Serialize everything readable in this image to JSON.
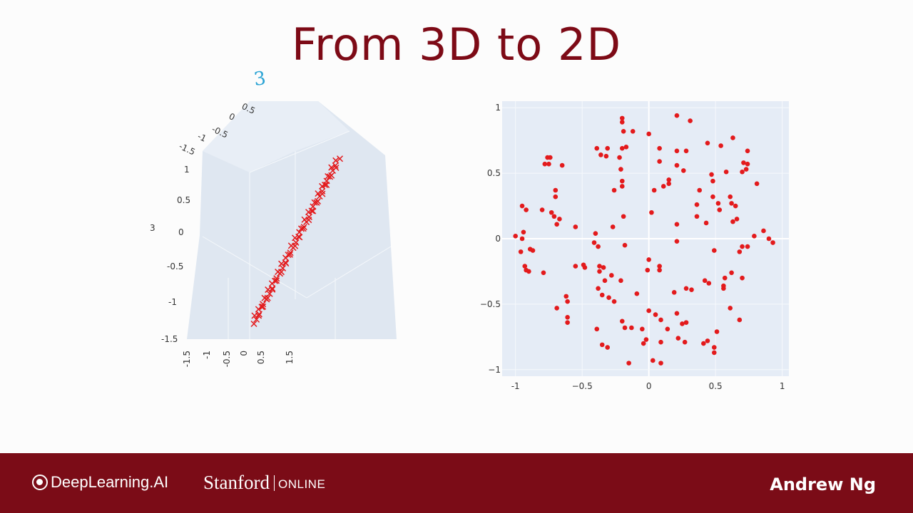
{
  "slide": {
    "title": "From 3D to 2D",
    "annotation": "3"
  },
  "footer": {
    "deeplearning_label": "DeepLearning.AI",
    "stanford_label": "Stanford",
    "online_label": "ONLINE",
    "presenter": "Andrew Ng"
  },
  "colors": {
    "title": "#7d0a16",
    "footer_bg": "#7b0c17",
    "marker": "#e31a1c",
    "plot_bg": "#e5ecf6"
  },
  "chart_data": [
    {
      "type": "scatter3d",
      "marker": "x",
      "x_ticks": [
        "-1.5",
        "-1",
        "-0.5",
        "0",
        "0.5",
        "1.5"
      ],
      "z_ticks": [
        "1",
        "0.5",
        "0",
        "-0.5",
        "-1",
        "-1.5"
      ],
      "top_ticks": [
        "0.5",
        "0",
        "-0.5",
        "-1",
        "-1.5"
      ],
      "side_label": "3",
      "line": {
        "t_from": -1.5,
        "t_to": 1.5,
        "n": 70
      }
    },
    {
      "type": "scatter",
      "xlim": [
        -1.1,
        1.05
      ],
      "ylim": [
        -1.05,
        1.05
      ],
      "x_ticks": [
        "-1",
        "−0.5",
        "0",
        "0.5",
        "1"
      ],
      "x_tick_values": [
        -1,
        -0.5,
        0,
        0.5,
        1
      ],
      "y_ticks": [
        "1",
        "0.5",
        "0",
        "−0.5",
        "−1"
      ],
      "y_tick_values": [
        1,
        0.5,
        0,
        -0.5,
        -1
      ],
      "grid": true,
      "points": [
        [
          -0.2,
          0.92
        ],
        [
          -0.2,
          0.89
        ],
        [
          0.21,
          0.94
        ],
        [
          0.31,
          0.9
        ],
        [
          -0.19,
          0.82
        ],
        [
          -0.12,
          0.82
        ],
        [
          0,
          0.8
        ],
        [
          0.63,
          0.77
        ],
        [
          -0.39,
          0.69
        ],
        [
          -0.31,
          0.69
        ],
        [
          -0.2,
          0.69
        ],
        [
          -0.17,
          0.7
        ],
        [
          0.08,
          0.69
        ],
        [
          0.21,
          0.67
        ],
        [
          0.28,
          0.67
        ],
        [
          0.44,
          0.73
        ],
        [
          0.54,
          0.71
        ],
        [
          0.74,
          0.67
        ],
        [
          -0.36,
          0.64
        ],
        [
          -0.32,
          0.63
        ],
        [
          -0.22,
          0.62
        ],
        [
          0.08,
          0.59
        ],
        [
          -0.76,
          0.62
        ],
        [
          -0.74,
          0.62
        ],
        [
          -0.78,
          0.57
        ],
        [
          -0.75,
          0.57
        ],
        [
          -0.65,
          0.56
        ],
        [
          -0.21,
          0.53
        ],
        [
          0.21,
          0.56
        ],
        [
          0.26,
          0.52
        ],
        [
          0.47,
          0.49
        ],
        [
          0.58,
          0.51
        ],
        [
          0.71,
          0.58
        ],
        [
          0.74,
          0.57
        ],
        [
          0.7,
          0.51
        ],
        [
          0.73,
          0.53
        ],
        [
          0.81,
          0.42
        ],
        [
          -0.2,
          0.44
        ],
        [
          -0.2,
          0.4
        ],
        [
          -0.26,
          0.37
        ],
        [
          0.15,
          0.45
        ],
        [
          0.15,
          0.42
        ],
        [
          0.11,
          0.4
        ],
        [
          0.04,
          0.37
        ],
        [
          0.48,
          0.44
        ],
        [
          0.38,
          0.37
        ],
        [
          0.48,
          0.32
        ],
        [
          0.52,
          0.27
        ],
        [
          0.61,
          0.32
        ],
        [
          0.62,
          0.27
        ],
        [
          0.65,
          0.25
        ],
        [
          -0.7,
          0.37
        ],
        [
          -0.7,
          0.32
        ],
        [
          -0.95,
          0.25
        ],
        [
          -0.92,
          0.22
        ],
        [
          -0.8,
          0.22
        ],
        [
          -0.73,
          0.2
        ],
        [
          -0.71,
          0.17
        ],
        [
          -0.67,
          0.15
        ],
        [
          -0.69,
          0.11
        ],
        [
          -0.19,
          0.17
        ],
        [
          0.02,
          0.2
        ],
        [
          0.36,
          0.26
        ],
        [
          0.36,
          0.17
        ],
        [
          0.21,
          0.11
        ],
        [
          0.43,
          0.12
        ],
        [
          0.53,
          0.22
        ],
        [
          0.66,
          0.15
        ],
        [
          0.63,
          0.13
        ],
        [
          -0.55,
          0.09
        ],
        [
          -0.27,
          0.09
        ],
        [
          -1,
          0.02
        ],
        [
          -0.94,
          0.05
        ],
        [
          -0.95,
          0
        ],
        [
          0.86,
          0.06
        ],
        [
          0.79,
          0.02
        ],
        [
          0.9,
          0
        ],
        [
          0.93,
          -0.03
        ],
        [
          -0.4,
          0.04
        ],
        [
          -0.41,
          -0.03
        ],
        [
          -0.38,
          -0.06
        ],
        [
          -0.18,
          -0.05
        ],
        [
          0.21,
          -0.02
        ],
        [
          0.49,
          -0.09
        ],
        [
          0.7,
          -0.06
        ],
        [
          0.74,
          -0.06
        ],
        [
          0.68,
          -0.1
        ],
        [
          -0.96,
          -0.1
        ],
        [
          -0.89,
          -0.08
        ],
        [
          -0.87,
          -0.09
        ],
        [
          -0.93,
          -0.21
        ],
        [
          -0.92,
          -0.24
        ],
        [
          -0.9,
          -0.25
        ],
        [
          -0.79,
          -0.26
        ],
        [
          -0.55,
          -0.21
        ],
        [
          -0.49,
          -0.2
        ],
        [
          -0.48,
          -0.22
        ],
        [
          -0.37,
          -0.21
        ],
        [
          -0.34,
          -0.22
        ],
        [
          -0.37,
          -0.25
        ],
        [
          -0.33,
          -0.32
        ],
        [
          -0.28,
          -0.28
        ],
        [
          -0.21,
          -0.32
        ],
        [
          -0.38,
          -0.38
        ],
        [
          0,
          -0.16
        ],
        [
          0.08,
          -0.21
        ],
        [
          -0.01,
          -0.24
        ],
        [
          0.08,
          -0.24
        ],
        [
          -0.62,
          -0.44
        ],
        [
          -0.61,
          -0.48
        ],
        [
          -0.69,
          -0.53
        ],
        [
          -0.61,
          -0.6
        ],
        [
          -0.61,
          -0.64
        ],
        [
          -0.35,
          -0.43
        ],
        [
          -0.3,
          -0.45
        ],
        [
          -0.26,
          -0.48
        ],
        [
          -0.09,
          -0.42
        ],
        [
          0.19,
          -0.41
        ],
        [
          0.28,
          -0.38
        ],
        [
          0.32,
          -0.39
        ],
        [
          0.42,
          -0.32
        ],
        [
          0.45,
          -0.34
        ],
        [
          0.57,
          -0.3
        ],
        [
          0.56,
          -0.36
        ],
        [
          0.56,
          -0.38
        ],
        [
          0.62,
          -0.26
        ],
        [
          0.7,
          -0.3
        ],
        [
          0.61,
          -0.53
        ],
        [
          0.68,
          -0.62
        ],
        [
          -0.39,
          -0.69
        ],
        [
          -0.35,
          -0.81
        ],
        [
          -0.31,
          -0.83
        ],
        [
          -0.2,
          -0.63
        ],
        [
          -0.18,
          -0.68
        ],
        [
          -0.13,
          -0.68
        ],
        [
          -0.05,
          -0.69
        ],
        [
          -0.04,
          -0.8
        ],
        [
          -0.02,
          -0.77
        ],
        [
          0,
          -0.55
        ],
        [
          0.05,
          -0.58
        ],
        [
          0.09,
          -0.62
        ],
        [
          0.14,
          -0.69
        ],
        [
          0.09,
          -0.79
        ],
        [
          0.21,
          -0.57
        ],
        [
          0.25,
          -0.65
        ],
        [
          0.28,
          -0.64
        ],
        [
          0.22,
          -0.76
        ],
        [
          0.27,
          -0.79
        ],
        [
          0.41,
          -0.8
        ],
        [
          0.44,
          -0.78
        ],
        [
          0.49,
          -0.83
        ],
        [
          0.49,
          -0.87
        ],
        [
          0.51,
          -0.71
        ],
        [
          -0.15,
          -0.95
        ],
        [
          0.03,
          -0.93
        ],
        [
          0.09,
          -0.95
        ]
      ]
    }
  ]
}
